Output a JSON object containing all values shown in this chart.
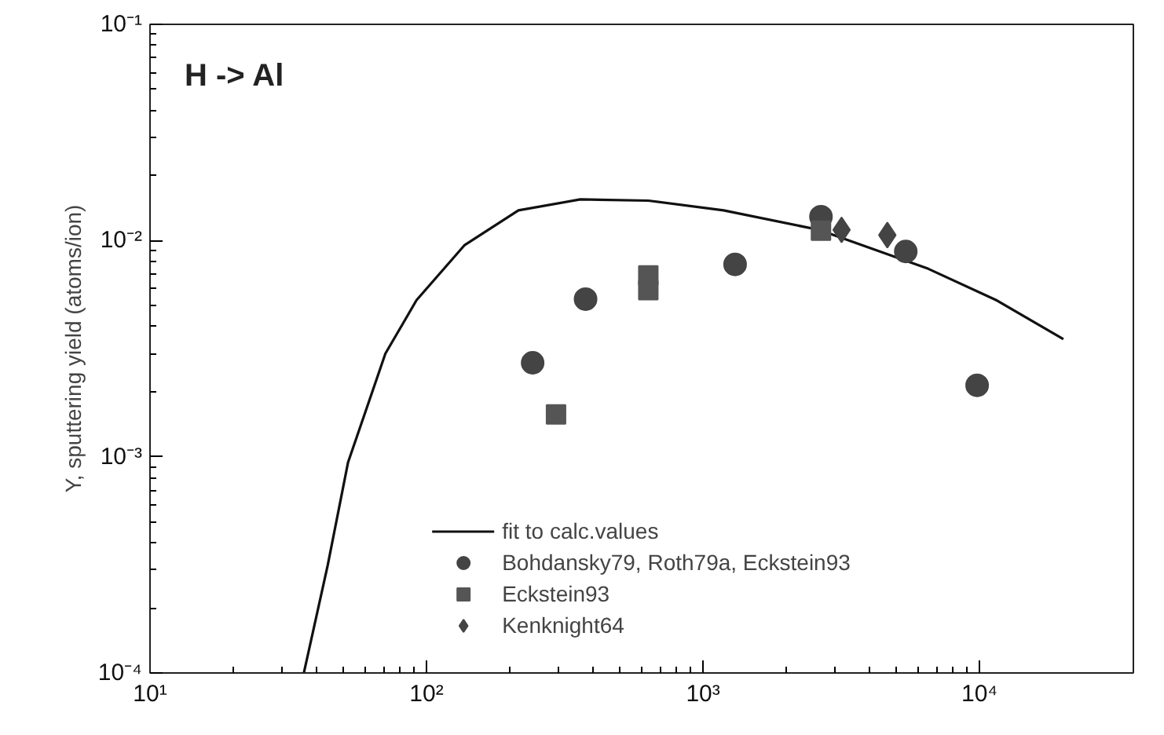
{
  "chart_data": {
    "type": "scatter",
    "ylabel": "Y, sputtering yield (atoms/ion)",
    "annotations": [
      "H -> Al"
    ],
    "log": "xy",
    "grid": false,
    "legend": "bottom",
    "xlim": [
      10,
      36000
    ],
    "ylim": [
      0.0001,
      0.1
    ],
    "xticks": [
      {
        "value": 10,
        "label": "10¹"
      },
      {
        "value": 100,
        "label": "10²"
      },
      {
        "value": 1000,
        "label": "10³"
      },
      {
        "value": 10000,
        "label": "10⁴"
      }
    ],
    "yticks": [
      {
        "value": 0.0001,
        "label": "10⁻⁴"
      },
      {
        "value": 0.001,
        "label": "10⁻³"
      },
      {
        "value": 0.01,
        "label": "10⁻²"
      },
      {
        "value": 0.1,
        "label": "10⁻¹"
      }
    ],
    "series": [
      {
        "name": "fit to calc.values",
        "type": "line",
        "marker": "none",
        "color": "#111111",
        "x": [
          36,
          43.9,
          52,
          71,
          92,
          137,
          215,
          360,
          634,
          1186,
          2630,
          6530,
          11500,
          20100
        ],
        "values": [
          0.0001,
          0.000314,
          0.00094,
          0.003,
          0.0053,
          0.0095,
          0.0138,
          0.0155,
          0.0153,
          0.0138,
          0.0112,
          0.0074,
          0.0053,
          0.0035
        ]
      },
      {
        "name": "Bohdansky79, Roth79a, Eckstein93",
        "marker": "circle",
        "color": "#444444",
        "x": [
          242,
          376,
          1306,
          2670,
          5410,
          9800
        ],
        "values": [
          0.00272,
          0.00536,
          0.00776,
          0.0129,
          0.0089,
          0.00214
        ]
      },
      {
        "name": "Eckstein93",
        "marker": "square",
        "color": "#555555",
        "x": [
          294,
          634,
          634,
          2670
        ],
        "values": [
          0.00157,
          0.0069,
          0.0059,
          0.0111
        ]
      },
      {
        "name": "Kenknight64",
        "marker": "diamond",
        "color": "#444444",
        "x": [
          3170,
          4640
        ],
        "values": [
          0.0112,
          0.0106
        ]
      }
    ]
  }
}
